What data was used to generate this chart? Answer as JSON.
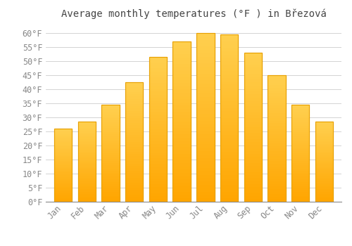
{
  "title": "Average monthly temperatures (°F ) in Březová",
  "months": [
    "Jan",
    "Feb",
    "Mar",
    "Apr",
    "May",
    "Jun",
    "Jul",
    "Aug",
    "Sep",
    "Oct",
    "Nov",
    "Dec"
  ],
  "values": [
    26.1,
    28.6,
    34.5,
    42.5,
    51.5,
    57.0,
    60.0,
    59.5,
    53.0,
    45.0,
    34.5,
    28.6
  ],
  "bar_color_top": "#FFCC44",
  "bar_color_bottom": "#FFA500",
  "bar_edge_color": "#E8A000",
  "background_color": "#FFFFFF",
  "grid_color": "#CCCCCC",
  "ylim": [
    0,
    63
  ],
  "yticks": [
    0,
    5,
    10,
    15,
    20,
    25,
    30,
    35,
    40,
    45,
    50,
    55,
    60
  ],
  "title_fontsize": 10,
  "tick_fontsize": 8.5,
  "tick_color": "#888888",
  "bar_width": 0.75
}
